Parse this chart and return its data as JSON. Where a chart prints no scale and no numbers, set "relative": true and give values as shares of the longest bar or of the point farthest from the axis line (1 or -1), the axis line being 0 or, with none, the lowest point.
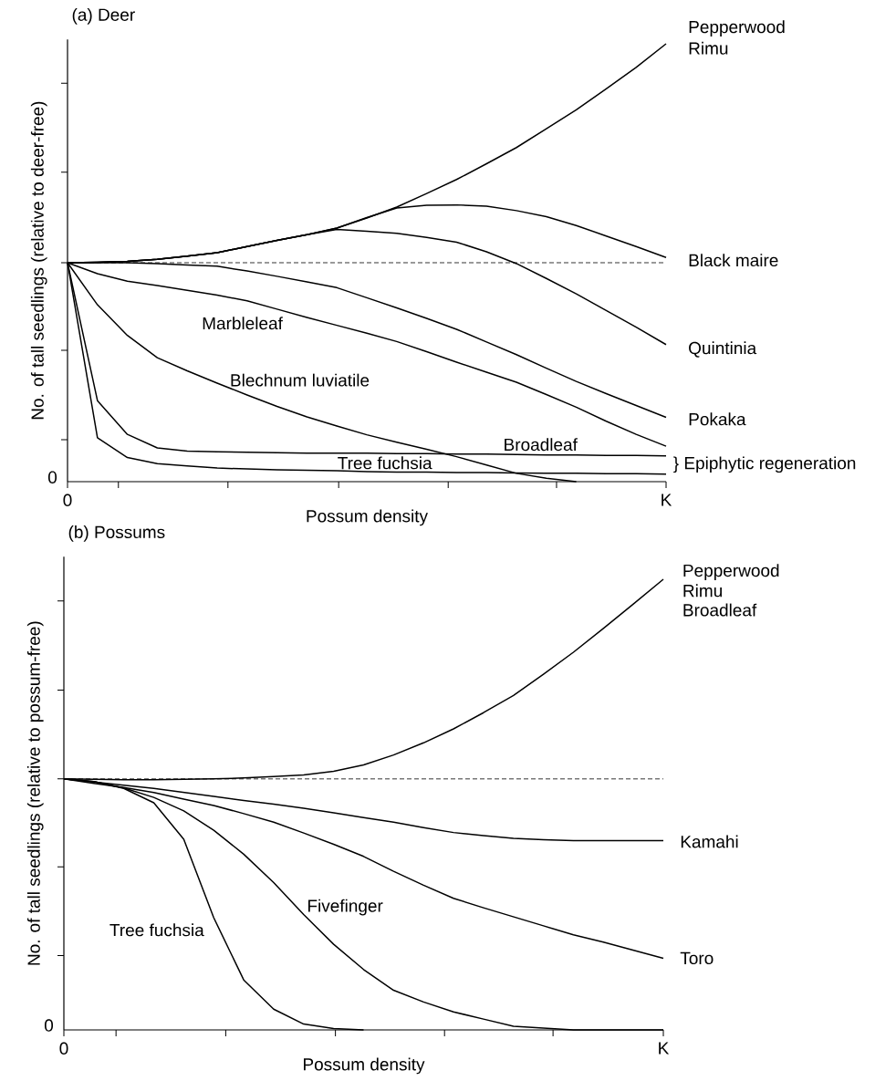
{
  "chart_data": [
    {
      "type": "line",
      "title": "(a)  Deer",
      "xlabel": "Possum density",
      "ylabel": "No. of tall seedlings (relative to deer-free)",
      "relative": true,
      "categories": [
        "0",
        null,
        null,
        null,
        null,
        null,
        null,
        null,
        null,
        null,
        null,
        null,
        null,
        null,
        null,
        null,
        null,
        null,
        null,
        null,
        "K"
      ],
      "ref_lines": [
        {
          "axis": "y",
          "value": 0.5,
          "color": "#000000",
          "line_style": "dashed"
        }
      ],
      "series": [
        {
          "color": "#000000",
          "values": [
            0.5,
            0.501,
            0.503,
            0.508,
            0.515,
            0.523,
            0.537,
            0.551,
            0.564,
            0.579,
            0.602,
            0.627,
            0.658,
            0.69,
            0.726,
            0.763,
            0.806,
            0.849,
            0.897,
            0.946,
            1.0
          ]
        },
        {
          "name": "Black maire",
          "color": "#000000",
          "values": [
            0.5,
            0.501,
            0.503,
            0.508,
            0.515,
            0.523,
            0.537,
            0.551,
            0.564,
            0.579,
            0.603,
            0.625,
            0.631,
            0.632,
            0.629,
            0.619,
            0.605,
            0.585,
            0.561,
            0.537,
            0.512
          ]
        },
        {
          "name": "Quintinia",
          "color": "#000000",
          "values": [
            0.5,
            0.501,
            0.503,
            0.508,
            0.515,
            0.523,
            0.537,
            0.551,
            0.564,
            0.576,
            0.572,
            0.567,
            0.558,
            0.547,
            0.525,
            0.498,
            0.464,
            0.429,
            0.391,
            0.353,
            0.313
          ]
        },
        {
          "name": "Pokaka",
          "color": "#000000",
          "values": [
            0.5,
            0.5,
            0.5,
            0.498,
            0.495,
            0.492,
            0.481,
            0.469,
            0.456,
            0.443,
            0.42,
            0.397,
            0.373,
            0.348,
            0.319,
            0.29,
            0.259,
            0.229,
            0.201,
            0.174,
            0.147
          ]
        },
        {
          "name": "Marbleleaf",
          "color": "#000000",
          "values": [
            0.5,
            0.475,
            0.458,
            0.448,
            0.437,
            0.426,
            0.413,
            0.394,
            0.375,
            0.357,
            0.339,
            0.32,
            0.297,
            0.273,
            0.25,
            0.227,
            0.199,
            0.17,
            0.138,
            0.108,
            0.081
          ]
        },
        {
          "name": "Blechnum luviatile",
          "color": "#000000",
          "values": [
            0.5,
            0.404,
            0.334,
            0.283,
            0.253,
            0.225,
            0.198,
            0.172,
            0.148,
            0.127,
            0.107,
            0.09,
            0.074,
            0.057,
            0.038,
            0.019,
            0.008,
            0,
            null,
            null,
            null
          ]
        },
        {
          "name": "Broadleaf",
          "color": "#000000",
          "values": [
            0.5,
            0.185,
            0.108,
            0.077,
            0.07,
            0.068,
            0.067,
            0.066,
            0.065,
            0.065,
            0.065,
            0.064,
            0.064,
            0.063,
            0.063,
            0.062,
            0.061,
            0.061,
            0.06,
            0.06,
            0.059
          ]
        },
        {
          "name": "Tree fuchsia",
          "color": "#000000",
          "values": [
            0.5,
            0.1,
            0.055,
            0.041,
            0.036,
            0.031,
            0.029,
            0.027,
            0.026,
            0.025,
            0.023,
            0.022,
            0.022,
            0.021,
            0.021,
            0.02,
            0.019,
            0.019,
            0.018,
            0.018,
            0.017
          ]
        }
      ],
      "annotations": [
        "Pepperwood",
        "Rimu",
        "} Epiphytic regeneration",
        "0"
      ]
    },
    {
      "type": "line",
      "title": "(b)  Possums",
      "xlabel": "Possum density",
      "ylabel": "No. of tall seedlings (relative to possum-free)",
      "relative": true,
      "categories": [
        "0",
        null,
        null,
        null,
        null,
        null,
        null,
        null,
        null,
        null,
        null,
        null,
        null,
        null,
        null,
        null,
        null,
        null,
        null,
        null,
        "K"
      ],
      "ref_lines": [
        {
          "axis": "y",
          "value": 0.557,
          "color": "#000000",
          "line_style": "dashed"
        }
      ],
      "series": [
        {
          "color": "#000000",
          "values": [
            0.557,
            0.556,
            0.555,
            0.555,
            0.556,
            0.557,
            0.559,
            0.562,
            0.566,
            0.574,
            0.588,
            0.61,
            0.637,
            0.668,
            0.704,
            0.742,
            0.789,
            0.838,
            0.891,
            0.945,
            1.0
          ]
        },
        {
          "name": "Kamahi",
          "color": "#000000",
          "values": [
            0.557,
            0.55,
            0.543,
            0.536,
            0.527,
            0.518,
            0.509,
            0.501,
            0.492,
            0.482,
            0.471,
            0.461,
            0.449,
            0.438,
            0.431,
            0.425,
            0.422,
            0.42,
            0.42,
            0.42,
            0.42
          ]
        },
        {
          "name": "Toro",
          "color": "#000000",
          "values": [
            0.557,
            0.547,
            0.538,
            0.527,
            0.512,
            0.498,
            0.48,
            0.461,
            0.437,
            0.412,
            0.385,
            0.352,
            0.321,
            0.292,
            0.271,
            0.251,
            0.231,
            0.211,
            0.195,
            0.177,
            0.159
          ]
        },
        {
          "name": "Fivefinger",
          "color": "#000000",
          "values": [
            0.557,
            0.551,
            0.537,
            0.516,
            0.486,
            0.443,
            0.39,
            0.327,
            0.256,
            0.19,
            0.134,
            0.088,
            0.062,
            0.04,
            0.024,
            0.008,
            0.004,
            0,
            0,
            0,
            0
          ]
        },
        {
          "name": "Tree fuchsia",
          "color": "#000000",
          "values": [
            0.557,
            0.551,
            0.536,
            0.504,
            0.423,
            0.249,
            0.111,
            0.046,
            0.013,
            0.003,
            0,
            null,
            null,
            null,
            null,
            null,
            null,
            null,
            null,
            null,
            null
          ]
        }
      ],
      "annotations": [
        "Pepperwood",
        "Rimu",
        "Broadleaf",
        "0"
      ]
    }
  ]
}
